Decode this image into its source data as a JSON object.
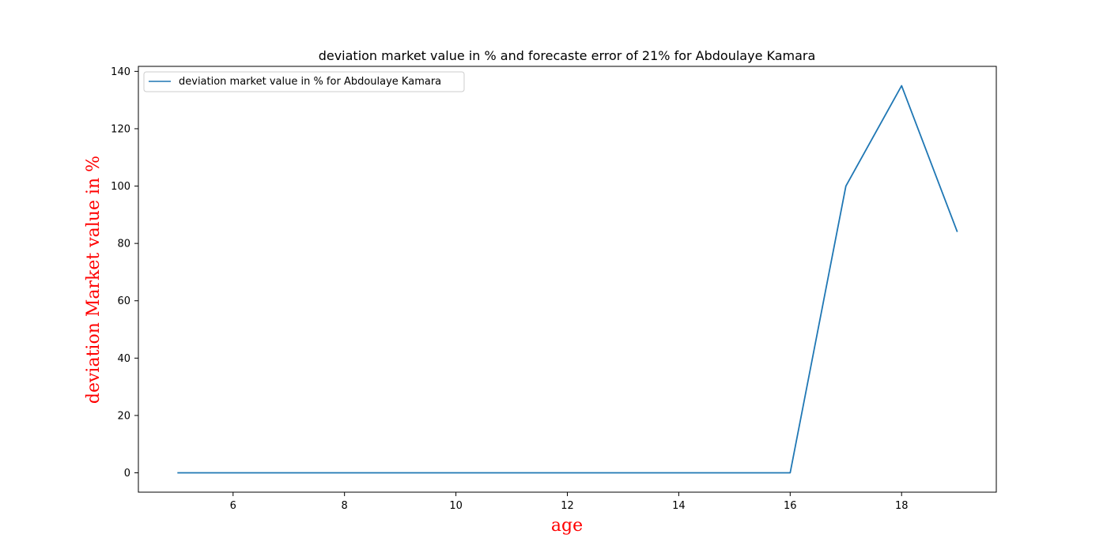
{
  "chart_data": {
    "type": "line",
    "title": "deviation market value in % and forecaste error of 21% for Abdoulaye Kamara",
    "xlabel": "age",
    "ylabel": "deviation Market value in %",
    "xlim": [
      4.3,
      19.7
    ],
    "ylim": [
      -6.75,
      141.75
    ],
    "xticks": [
      6,
      8,
      10,
      12,
      14,
      16,
      18
    ],
    "yticks": [
      0,
      20,
      40,
      60,
      80,
      100,
      120,
      140
    ],
    "grid": false,
    "legend_position": "upper-left",
    "axis_label_color": "#ff0000",
    "series": [
      {
        "name": "deviation market value in % for Abdoulaye Kamara",
        "color": "#1f77b4",
        "x": [
          5,
          6,
          7,
          8,
          9,
          10,
          11,
          12,
          13,
          14,
          15,
          16,
          17,
          18,
          19
        ],
        "y": [
          0,
          0,
          0,
          0,
          0,
          0,
          0,
          0,
          0,
          0,
          0,
          0,
          100,
          135,
          84
        ]
      }
    ]
  }
}
